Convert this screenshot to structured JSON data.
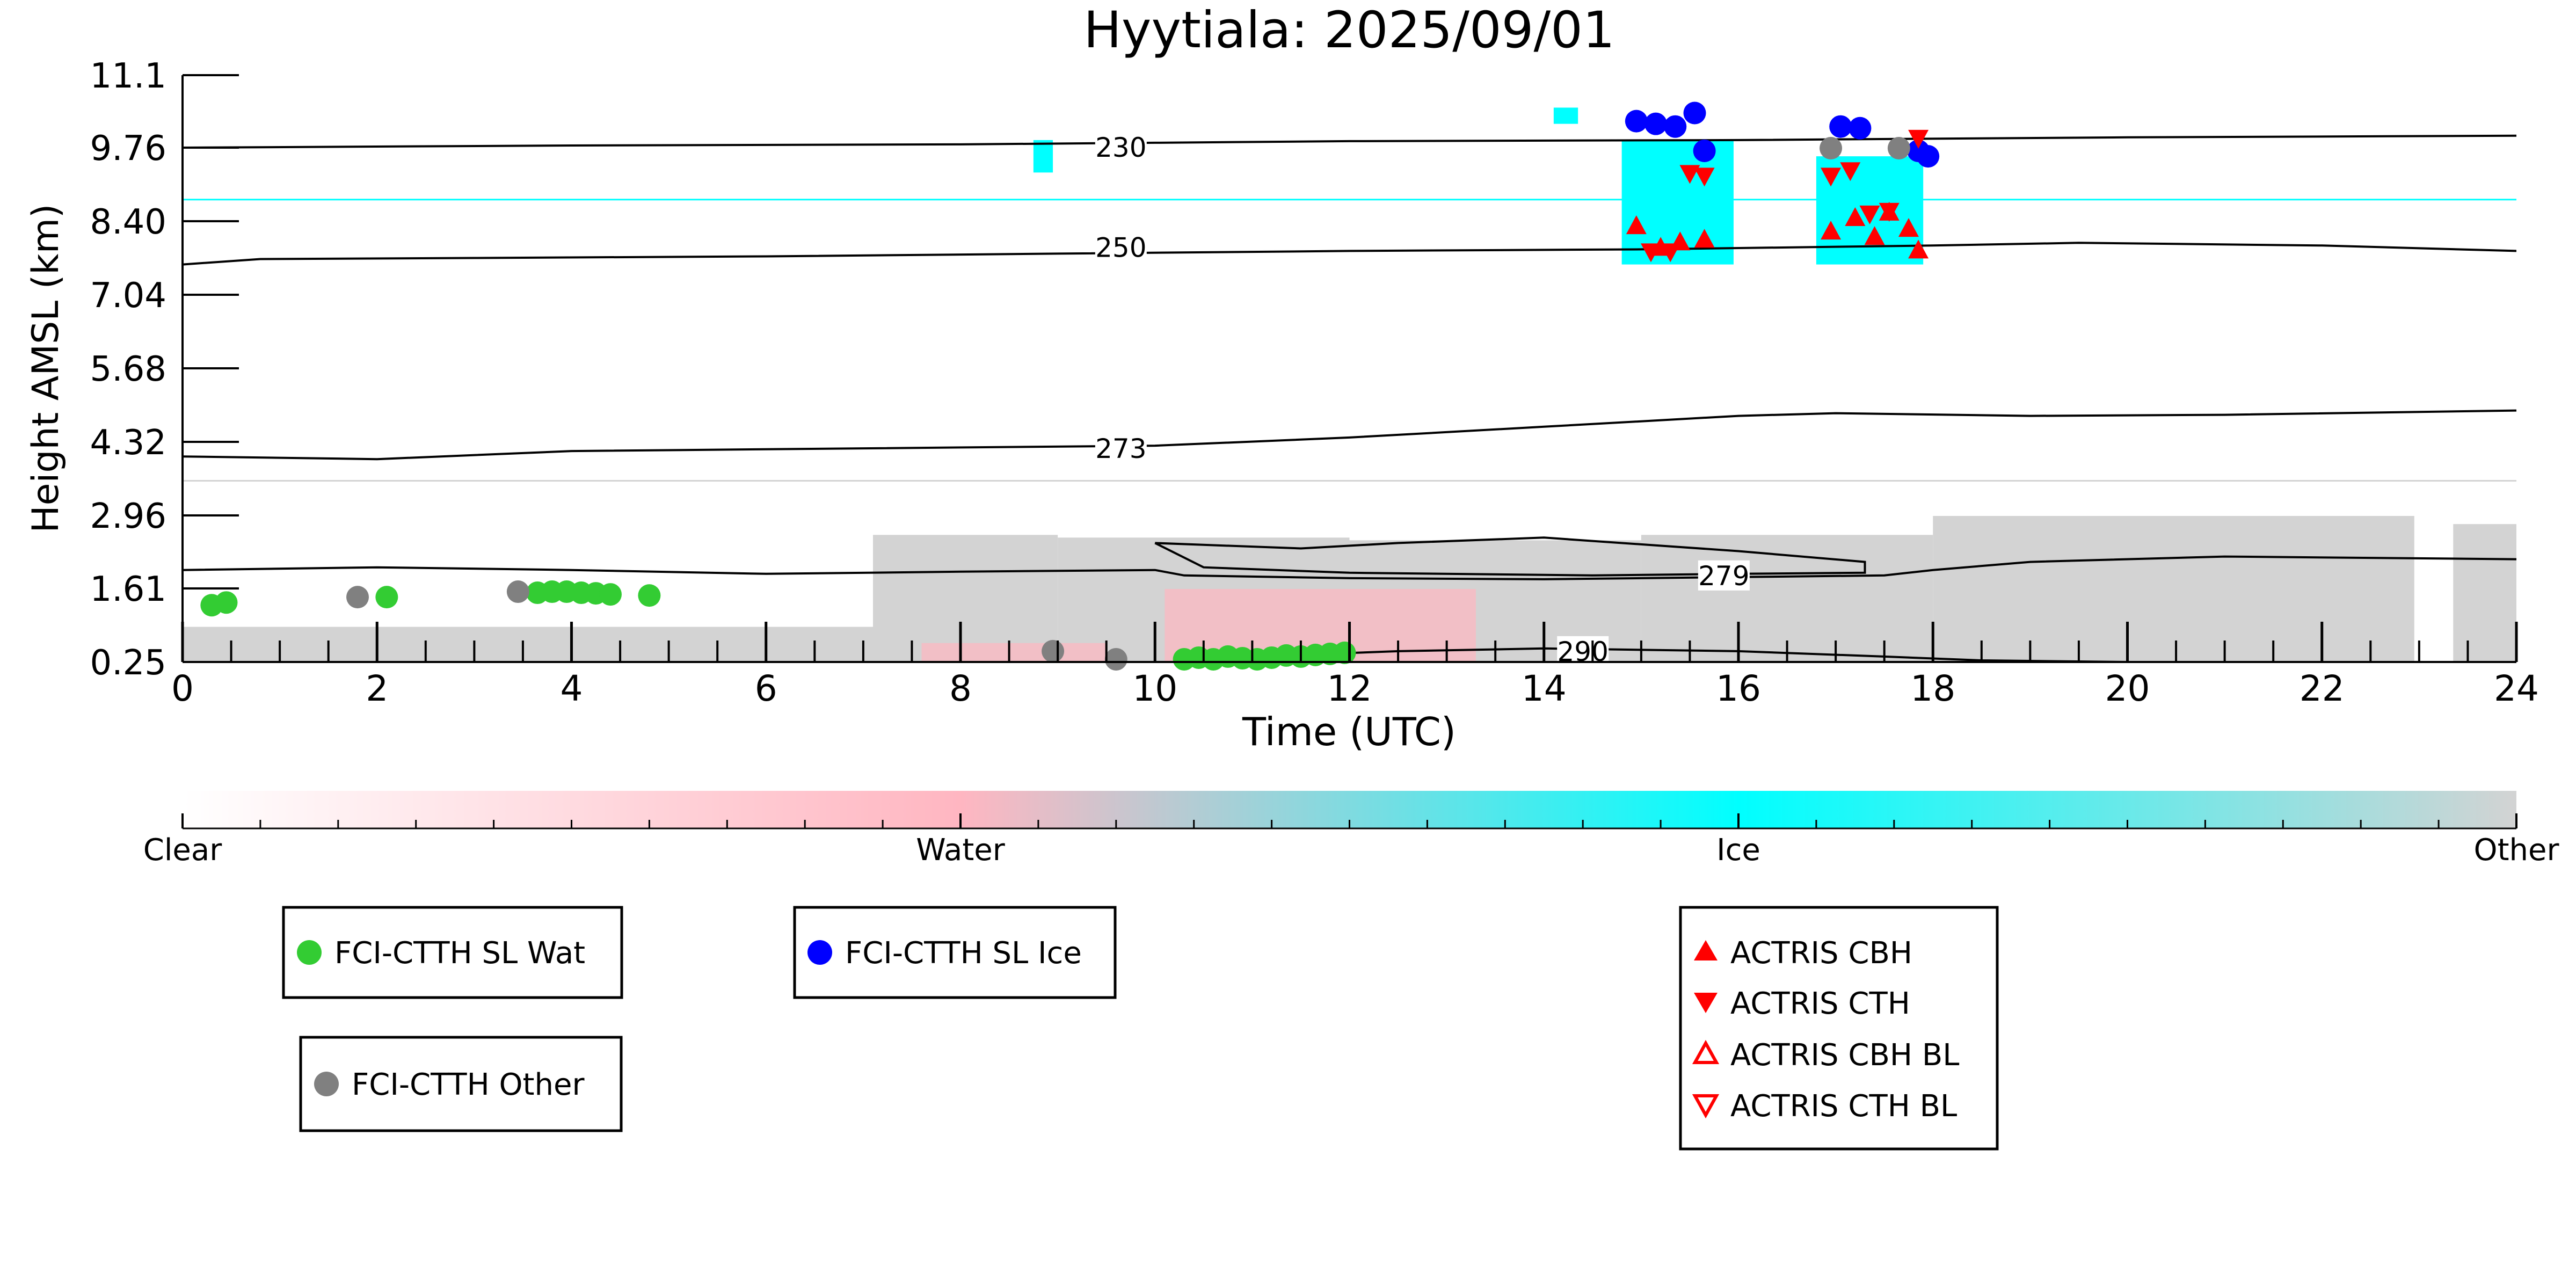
{
  "chart_data": {
    "type": "scatter",
    "title": "Hyytiala: 2025/09/01",
    "xlabel": "Time (UTC)",
    "ylabel": "Height AMSL (km)",
    "xlim": [
      0,
      24
    ],
    "ylim": [
      0.25,
      11.1
    ],
    "xticks": [
      0,
      2,
      4,
      6,
      8,
      10,
      12,
      14,
      16,
      18,
      20,
      22,
      24
    ],
    "yticks": [
      "0.25",
      "1.61",
      "2.96",
      "4.32",
      "5.68",
      "7.04",
      "8.40",
      "9.76",
      "11.1"
    ],
    "grid": false,
    "colors": {
      "wat": "#33cc33",
      "ice": "#0000ff",
      "other_pt": "#808080",
      "actris": "#ff0000",
      "cloud_ice": "#00ffff",
      "cloud_other": "#d3d3d3",
      "cloud_water": "#ffb6c1",
      "contour": "#000000"
    },
    "colorbar": {
      "labels": [
        "Clear",
        "Water",
        "Ice",
        "Other"
      ],
      "stops": [
        "#ffffff",
        "#ffb6c1",
        "#00ffff",
        "#d3d3d3"
      ]
    },
    "isotherm_labels": [
      {
        "text": "230",
        "x": 9.65,
        "y": 9.77
      },
      {
        "text": "250",
        "x": 9.65,
        "y": 7.92
      },
      {
        "text": "273",
        "x": 9.65,
        "y": 4.2
      },
      {
        "text": "279",
        "x": 15.85,
        "y": 1.85
      },
      {
        "text": "290",
        "x": 14.4,
        "y": 0.45
      }
    ],
    "isotherms": [
      {
        "label": "230",
        "x": [
          0,
          4,
          8,
          10,
          12,
          16,
          20,
          24
        ],
        "y": [
          9.76,
          9.8,
          9.82,
          9.85,
          9.88,
          9.9,
          9.95,
          9.98
        ]
      },
      {
        "label": "250",
        "x": [
          0,
          0.8,
          3,
          6,
          9,
          12,
          15,
          18,
          19.5,
          22,
          24
        ],
        "y": [
          7.6,
          7.7,
          7.72,
          7.75,
          7.8,
          7.85,
          7.88,
          7.95,
          8.0,
          7.95,
          7.85
        ]
      },
      {
        "label": "273",
        "x": [
          0,
          2,
          4,
          7,
          10,
          12,
          14,
          16,
          17,
          19,
          21,
          24
        ],
        "y": [
          4.05,
          4.0,
          4.15,
          4.2,
          4.25,
          4.4,
          4.6,
          4.8,
          4.85,
          4.8,
          4.82,
          4.9
        ]
      },
      {
        "label": "279",
        "x": [
          0,
          2,
          4,
          6,
          8,
          10,
          10.3,
          12,
          14,
          16,
          17.5,
          18,
          19,
          21,
          24
        ],
        "y": [
          1.95,
          2.0,
          1.95,
          1.88,
          1.92,
          1.95,
          1.85,
          1.8,
          1.78,
          1.82,
          1.85,
          1.95,
          2.1,
          2.2,
          2.15
        ]
      },
      {
        "label": "279 closed",
        "x": [
          10.0,
          11.5,
          12.5,
          14.0,
          16.0,
          17.3,
          17.3,
          16.0,
          14.5,
          12.0,
          10.5,
          10.0
        ],
        "y": [
          2.45,
          2.35,
          2.45,
          2.55,
          2.3,
          2.1,
          1.9,
          1.88,
          1.85,
          1.9,
          2.0,
          2.45
        ]
      },
      {
        "label": "290",
        "x": [
          11.0,
          12.5,
          14.0,
          16.0,
          17.5,
          18.5,
          20.0
        ],
        "y": [
          0.35,
          0.45,
          0.5,
          0.45,
          0.35,
          0.28,
          0.25
        ]
      }
    ],
    "series": [
      {
        "name": "FCI-CTTH SL Wat",
        "marker": "circle",
        "color": "#33cc33",
        "x": [
          0.3,
          0.45,
          2.1,
          3.65,
          3.8,
          3.95,
          4.1,
          4.25,
          4.4,
          4.8,
          10.3,
          10.45,
          10.6,
          10.75,
          10.9,
          11.05,
          11.2,
          11.35,
          11.5,
          11.65,
          11.8,
          11.95
        ],
        "y": [
          1.3,
          1.35,
          1.45,
          1.53,
          1.55,
          1.55,
          1.53,
          1.52,
          1.5,
          1.48,
          0.3,
          0.33,
          0.3,
          0.35,
          0.32,
          0.3,
          0.33,
          0.37,
          0.35,
          0.38,
          0.4,
          0.42
        ]
      },
      {
        "name": "FCI-CTTH SL Ice",
        "marker": "circle",
        "color": "#0000ff",
        "x": [
          14.95,
          15.15,
          15.35,
          15.55,
          15.65,
          17.05,
          17.25,
          17.85,
          17.95
        ],
        "y": [
          10.25,
          10.2,
          10.15,
          10.4,
          9.7,
          10.15,
          10.12,
          9.7,
          9.6
        ]
      },
      {
        "name": "FCI-CTTH Other",
        "marker": "circle",
        "color": "#808080",
        "x": [
          1.8,
          3.45,
          8.95,
          9.6,
          16.95,
          17.65
        ],
        "y": [
          1.45,
          1.55,
          0.45,
          0.3,
          9.75,
          9.75
        ]
      },
      {
        "name": "ACTRIS CBH",
        "marker": "triangle-up",
        "color": "#ff0000",
        "x": [
          14.95,
          15.2,
          15.4,
          15.65,
          16.95,
          17.2,
          17.4,
          17.55,
          17.75,
          17.85
        ],
        "y": [
          8.3,
          7.9,
          8.0,
          8.05,
          8.2,
          8.45,
          8.1,
          8.55,
          8.25,
          7.85
        ]
      },
      {
        "name": "ACTRIS CTH",
        "marker": "triangle-down",
        "color": "#ff0000",
        "x": [
          15.1,
          15.3,
          15.5,
          15.65,
          16.95,
          17.15,
          17.35,
          17.55,
          17.85
        ],
        "y": [
          7.85,
          7.85,
          9.3,
          9.25,
          9.25,
          9.35,
          8.55,
          8.6,
          9.95
        ]
      },
      {
        "name": "ACTRIS CBH BL",
        "marker": "triangle-up-open",
        "color": "#ff0000",
        "x": [],
        "y": []
      },
      {
        "name": "ACTRIS CTH BL",
        "marker": "triangle-down-open",
        "color": "#ff0000",
        "x": [],
        "y": []
      }
    ],
    "legend": [
      {
        "entries": [
          "FCI-CTTH SL Wat"
        ],
        "placement": "lower-left"
      },
      {
        "entries": [
          "FCI-CTTH SL Ice"
        ],
        "placement": "lower-left-center"
      },
      {
        "entries": [
          "FCI-CTTH Other"
        ],
        "placement": "bottom-left"
      },
      {
        "entries": [
          "ACTRIS CBH",
          "ACTRIS CTH",
          "ACTRIS CBH BL",
          "ACTRIS CTH BL"
        ],
        "placement": "lower-center-right"
      }
    ],
    "cloud_regions": [
      {
        "type": "other",
        "x0": 0.0,
        "x1": 7.1,
        "y0": 0.25,
        "y1": 0.9
      },
      {
        "type": "other",
        "x0": 7.1,
        "x1": 9.0,
        "y0": 0.25,
        "y1": 2.6
      },
      {
        "type": "other",
        "x0": 9.0,
        "x1": 12.0,
        "y0": 0.25,
        "y1": 2.55
      },
      {
        "type": "other",
        "x0": 12.0,
        "x1": 15.0,
        "y0": 0.25,
        "y1": 2.5
      },
      {
        "type": "other",
        "x0": 15.0,
        "x1": 18.0,
        "y0": 0.25,
        "y1": 2.6
      },
      {
        "type": "other",
        "x0": 18.0,
        "x1": 22.95,
        "y0": 0.25,
        "y1": 2.95
      },
      {
        "type": "other",
        "x0": 23.35,
        "x1": 24.0,
        "y0": 0.25,
        "y1": 2.8
      },
      {
        "type": "water",
        "x0": 7.6,
        "x1": 9.5,
        "y0": 0.25,
        "y1": 0.6
      },
      {
        "type": "water",
        "x0": 10.1,
        "x1": 13.3,
        "y0": 0.25,
        "y1": 1.6
      },
      {
        "type": "ice",
        "x0": 14.8,
        "x1": 15.95,
        "y0": 7.6,
        "y1": 9.9
      },
      {
        "type": "ice",
        "x0": 16.8,
        "x1": 17.9,
        "y0": 7.6,
        "y1": 9.6
      },
      {
        "type": "ice",
        "x0": 8.75,
        "x1": 8.95,
        "y0": 9.3,
        "y1": 9.9
      },
      {
        "type": "ice",
        "x0": 14.1,
        "x1": 14.35,
        "y0": 10.2,
        "y1": 10.5
      }
    ],
    "horizontal_lines": [
      {
        "type": "ice",
        "y": 8.8
      },
      {
        "type": "other",
        "y": 3.6
      }
    ]
  }
}
